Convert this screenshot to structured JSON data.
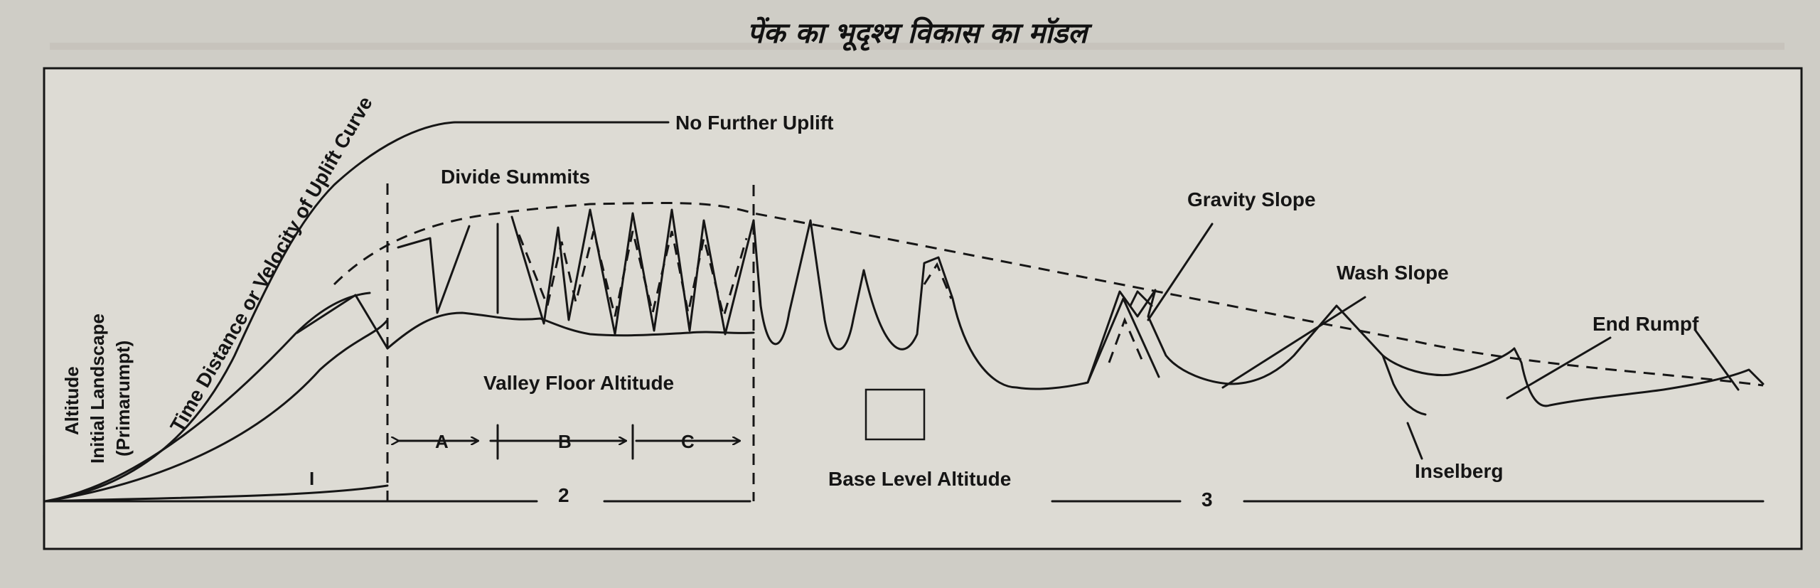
{
  "title": "पेंक का भूदृश्य विकास का मॉडल",
  "labels": {
    "uplift_curve": "Time Distance or Velocity of Uplift Curve",
    "no_further_uplift": "No Further Uplift",
    "divide_summits": "Divide Summits",
    "gravity_slope": "Gravity Slope",
    "wash_slope": "Wash Slope",
    "end_rumpf": "End Rumpf",
    "altitude": "Altitude",
    "initial_landscape": "Initial Landscape",
    "primarumpt": "(Primarumpt)",
    "valley_floor_altitude": "Valley Floor Altitude",
    "base_level_altitude": "Base Level Altitude",
    "inselberg": "Inselberg",
    "phase_a": "A",
    "phase_b": "B",
    "phase_c": "C",
    "stage_1": "I",
    "stage_2": "2",
    "stage_3": "3"
  },
  "colors": {
    "ink": "#161616",
    "paper": "#dddbd4",
    "page_bg": "#cfcdc6"
  }
}
